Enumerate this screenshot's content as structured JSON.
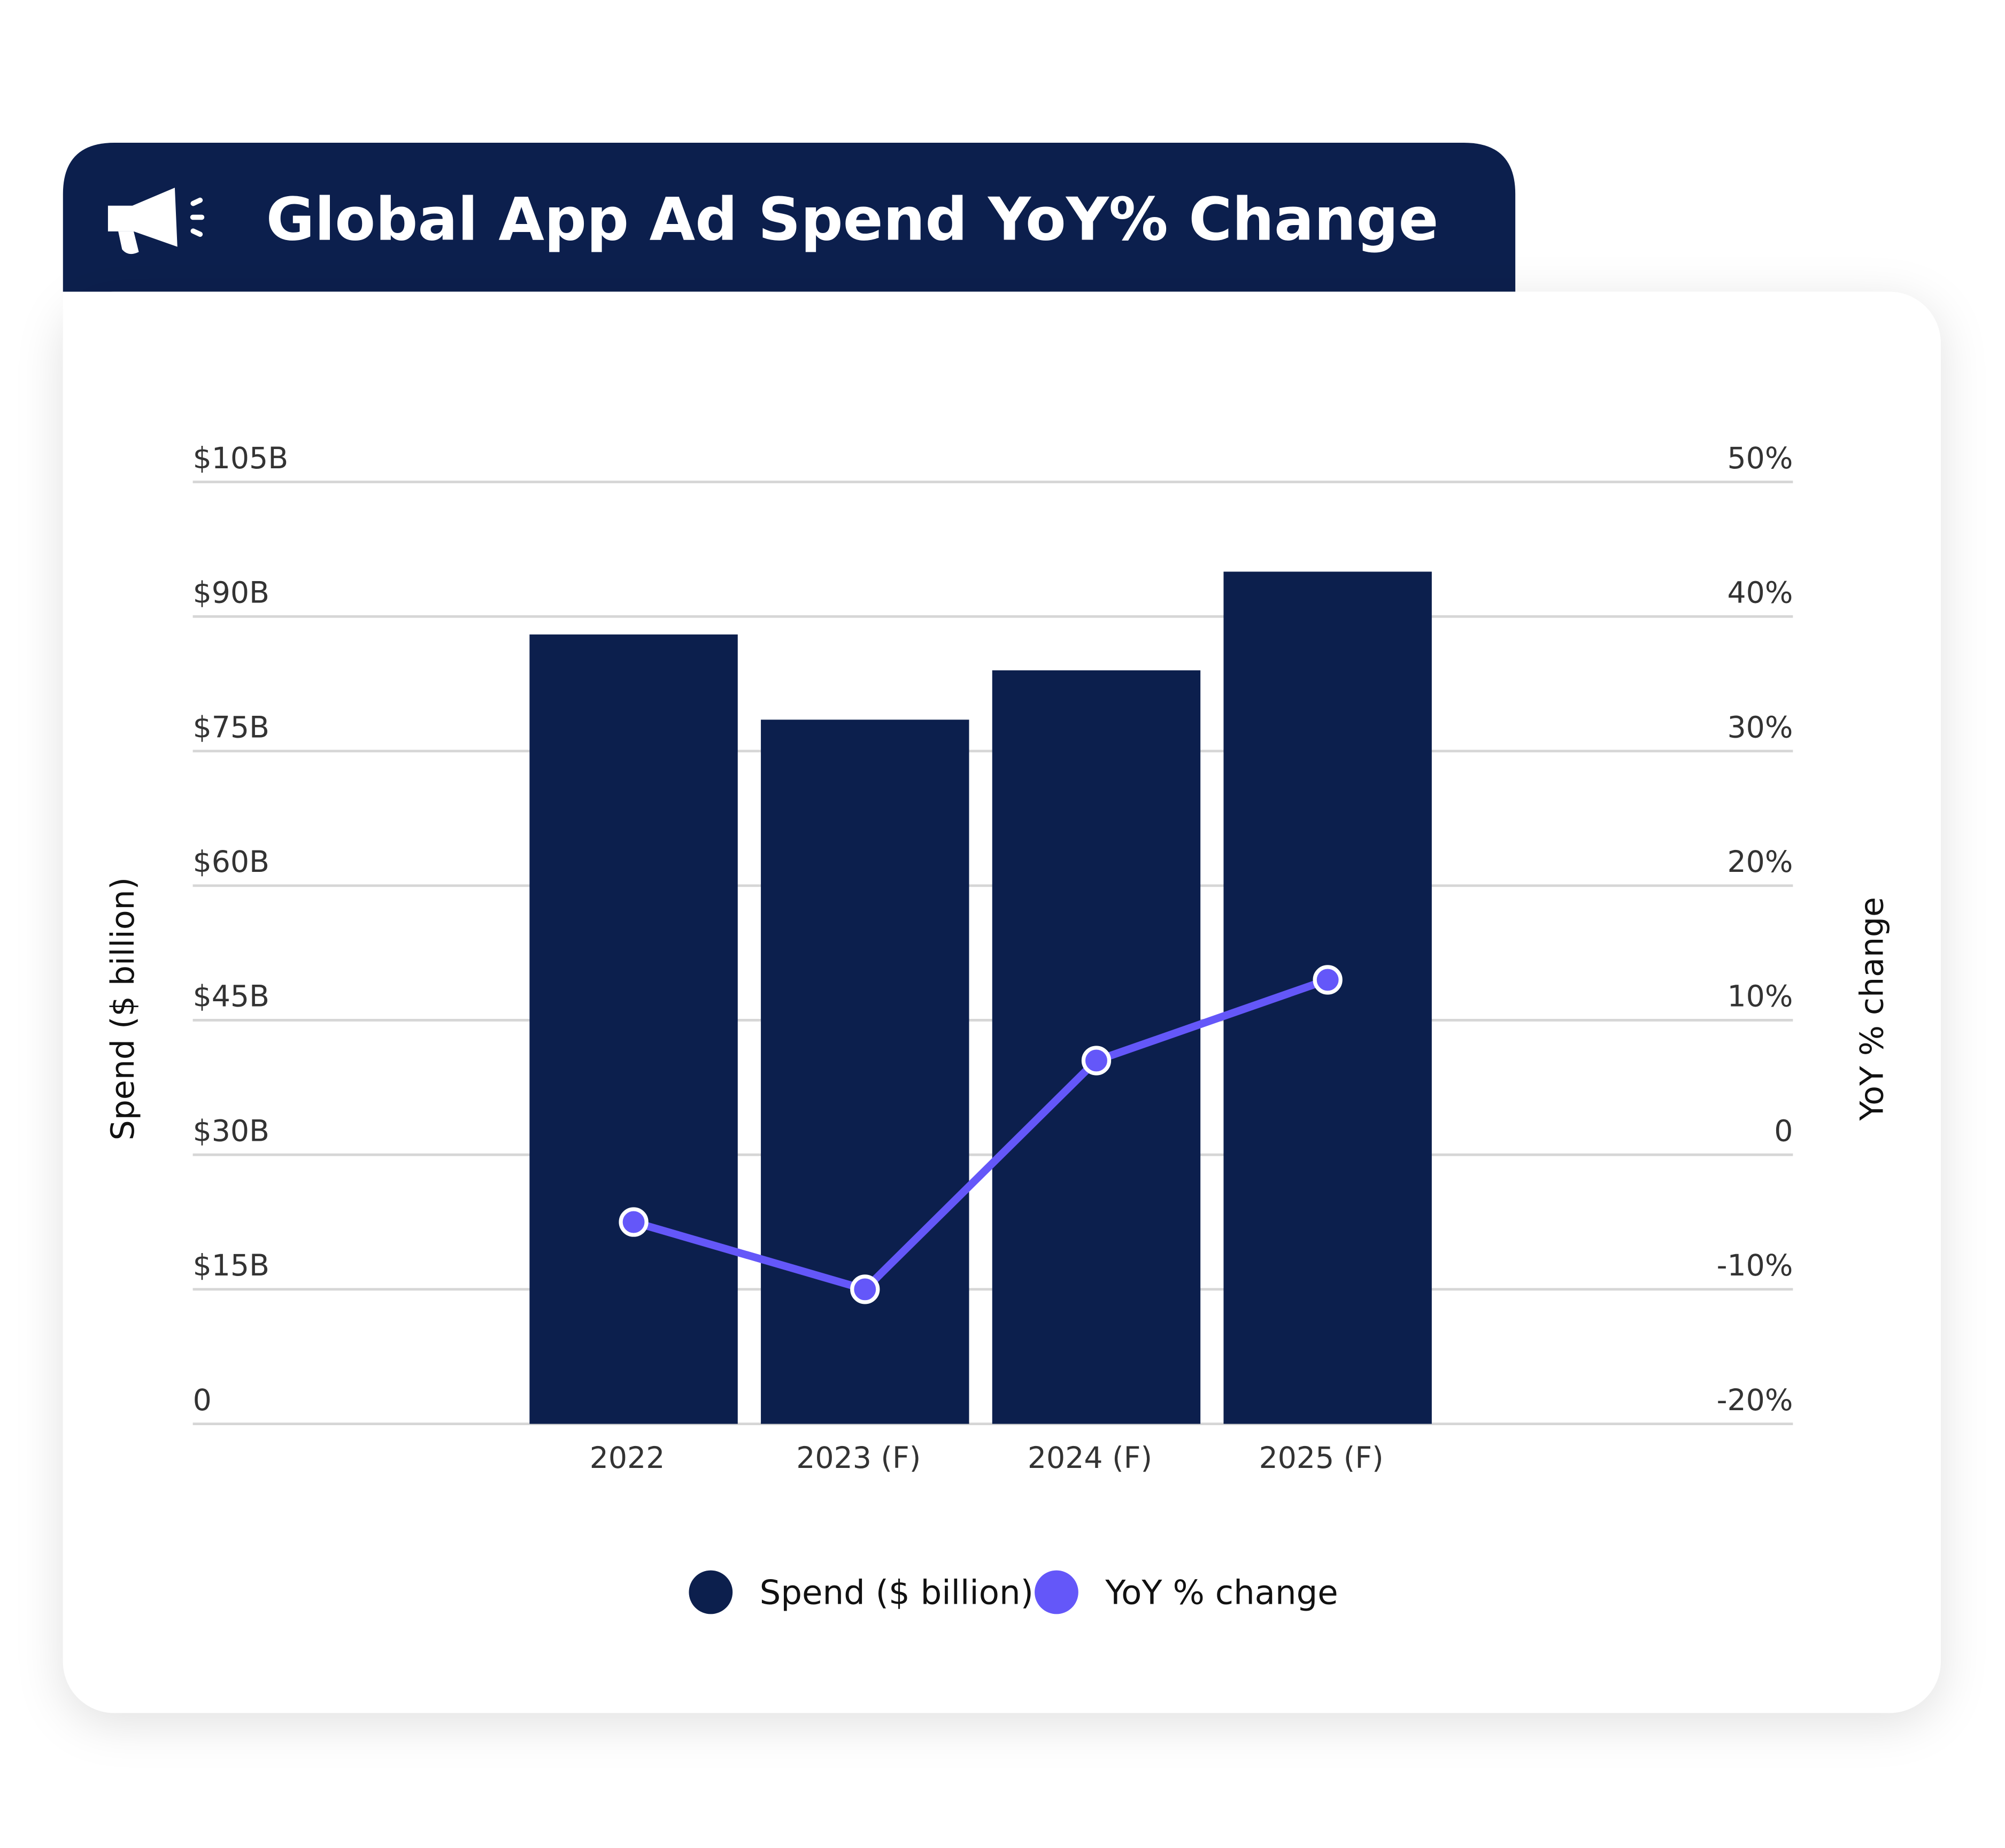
{
  "chart_data": {
    "type": "combo",
    "title": "Global App Ad Spend YoY% Change",
    "categories": [
      "2022",
      "2023 (F)",
      "2024 (F)",
      "2025 (F)"
    ],
    "series": [
      {
        "name": "Spend ($ billion)",
        "type": "bar",
        "color": "#0c1f4d",
        "values": [
          88,
          78.5,
          84,
          95
        ]
      },
      {
        "name": "YoY % change",
        "type": "line",
        "color": "#6457f9",
        "axis": "y2",
        "values": [
          -5,
          -10,
          7,
          13
        ]
      }
    ],
    "ylabel": "Spend ($ billion)",
    "y2label": "YoY % change",
    "ylim": [
      0,
      105
    ],
    "yticks": [
      0,
      {
        "value": 15,
        "label": "$15B"
      },
      {
        "value": 30,
        "label": "$30B"
      },
      {
        "value": 45,
        "label": "$45B"
      },
      {
        "value": 60,
        "label": "$60B"
      },
      {
        "value": 75,
        "label": "$75B"
      },
      {
        "value": 90,
        "label": "$90B"
      },
      {
        "value": 105,
        "label": "$105B"
      }
    ],
    "y2lim": [
      -20,
      50
    ],
    "y2ticks": [
      {
        "value": -20,
        "label": "-20%"
      },
      {
        "value": -10,
        "label": "-10%"
      },
      0,
      {
        "value": 10,
        "label": "10%"
      },
      {
        "value": 20,
        "label": "20%"
      },
      {
        "value": 30,
        "label": "30%"
      },
      {
        "value": 40,
        "label": "40%"
      },
      {
        "value": 50,
        "label": "50%"
      }
    ],
    "grid": true,
    "legend": "bottom"
  }
}
